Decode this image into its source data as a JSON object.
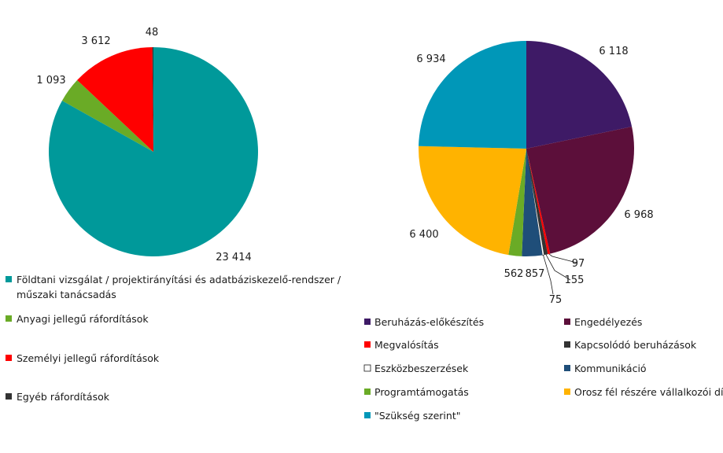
{
  "chart_data": [
    {
      "type": "pie",
      "categories": [
        "Földtani vizsgálat / projektirányítási és adatbáziskezelő-rendszer / műszaki tanácsadás",
        "Anyagi jellegű ráfordítások",
        "Személyi jellegű ráfordítások",
        "Egyéb ráfordítások"
      ],
      "values": [
        23414,
        1093,
        3612,
        48
      ],
      "value_labels": [
        "23 414",
        "1 093",
        "3 612",
        "48"
      ],
      "legend_lines": [
        [
          "Földtani vizsgálat / projektirányítási és adatbáziskezelő-rendszer /",
          "műszaki tanácsadás"
        ],
        [
          "Anyagi jellegű ráfordítások"
        ],
        [
          "Személyi jellegű ráfordítások"
        ],
        [
          "Egyéb ráfordítások"
        ]
      ],
      "colors": [
        "#00999a",
        "#6aab26",
        "#ff0000",
        "#333333"
      ],
      "legend_position": "bottom"
    },
    {
      "type": "pie",
      "categories": [
        "Beruházás-előkészítés",
        "Engedélyezés",
        "Megvalósítás",
        "Kapcsolódó beruházások",
        "Eszközbeszerzések",
        "Kommunikáció",
        "Programtámogatás",
        "Orosz fél részére vállalkozói díj",
        "\"Szükség szerint\""
      ],
      "values": [
        6118,
        6968,
        97,
        155,
        75,
        857,
        562,
        6400,
        6934
      ],
      "value_labels": [
        "6 118",
        "6 968",
        "97",
        "155",
        "75",
        "857",
        "562",
        "6 400",
        "6 934"
      ],
      "colors": [
        "#3e1a66",
        "#5c0f3a",
        "#ff0000",
        "#333333",
        "#ffffff",
        "#1f4e79",
        "#6aab26",
        "#ffb300",
        "#0097b8"
      ],
      "legend_position": "bottom"
    }
  ]
}
